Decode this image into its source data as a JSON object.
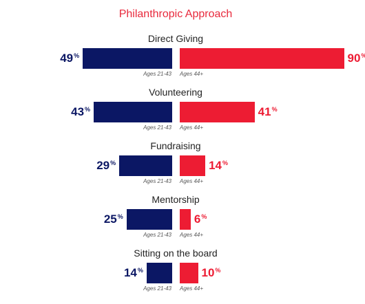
{
  "chart_data": {
    "type": "bar",
    "title": "Philanthropic Approach",
    "categories": [
      "Direct Giving",
      "Volunteering",
      "Fundraising",
      "Mentorship",
      "Sitting on the board"
    ],
    "series": [
      {
        "name": "Ages 21-43",
        "values": [
          49,
          43,
          29,
          25,
          14
        ]
      },
      {
        "name": "Ages 44+",
        "values": [
          90,
          41,
          14,
          6,
          10
        ]
      }
    ],
    "unit_suffix": "%",
    "colors": {
      "left": "#0b1764",
      "right": "#ed1c33",
      "title": "#e8293c"
    }
  }
}
